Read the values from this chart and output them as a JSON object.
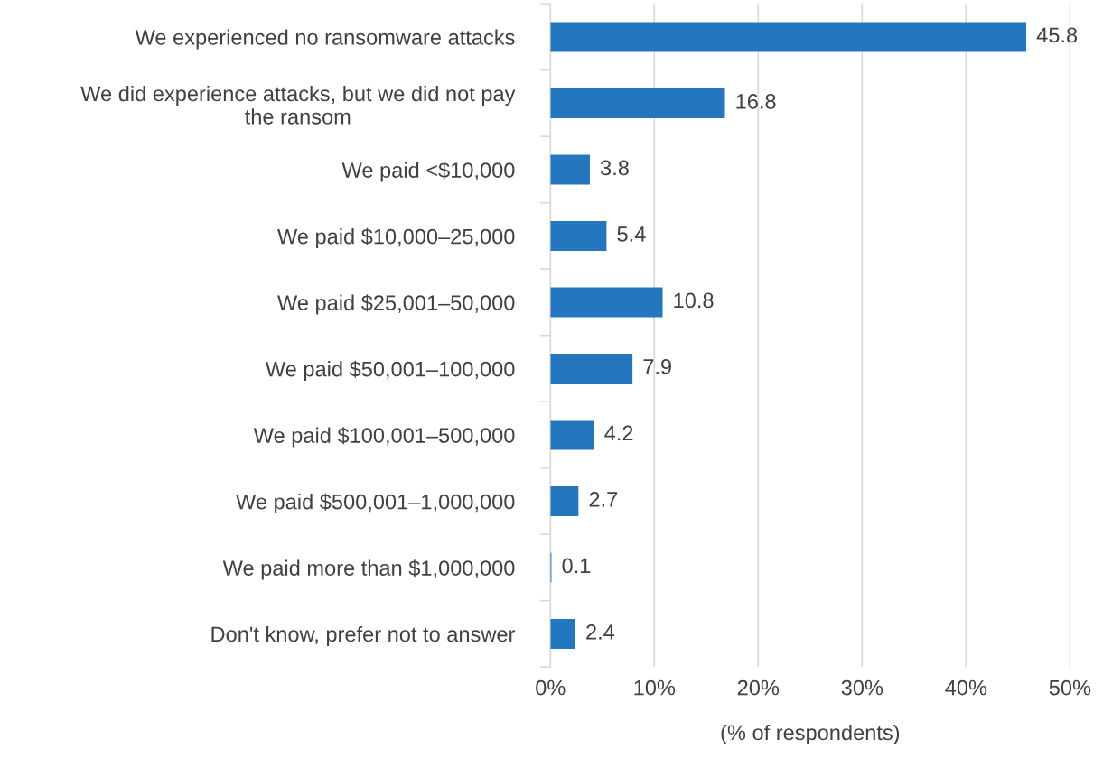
{
  "chart_data": {
    "type": "bar",
    "orientation": "horizontal",
    "xlabel": "(% of respondents)",
    "categories": [
      "We experienced no ransomware attacks",
      "We did experience attacks, but we did not pay\nthe ransom",
      "We paid <$10,000",
      "We paid $10,000–25,000",
      "We paid $25,001–50,000",
      "We paid $50,001–100,000",
      "We paid $100,001–500,000",
      "We paid $500,001–1,000,000",
      "We paid more than $1,000,000",
      "Don't know, prefer not to answer"
    ],
    "values": [
      45.8,
      16.8,
      3.8,
      5.4,
      10.8,
      7.9,
      4.2,
      2.7,
      0.1,
      2.4
    ],
    "color": "#2477bf",
    "data_labels": true,
    "xlim": [
      0,
      50
    ],
    "xticks": [
      {
        "value": 0,
        "label": "0%"
      },
      {
        "value": 10,
        "label": "10%"
      },
      {
        "value": 20,
        "label": "20%"
      },
      {
        "value": 30,
        "label": "30%"
      },
      {
        "value": 40,
        "label": "40%"
      },
      {
        "value": 50,
        "label": "50%"
      }
    ],
    "grid": "x"
  }
}
